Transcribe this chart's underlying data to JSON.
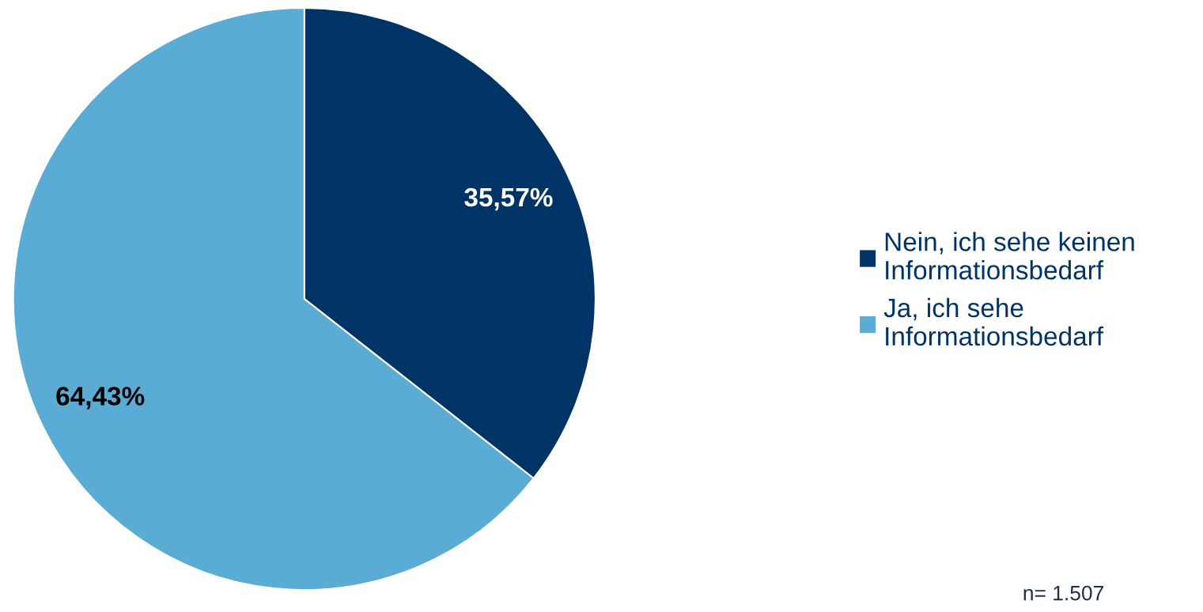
{
  "chart_data": {
    "type": "pie",
    "categories": [
      "Nein, ich sehe keinen Informationsbedarf",
      "Ja, ich sehe Informationsbedarf"
    ],
    "values": [
      35.57,
      64.43
    ],
    "colors": [
      "#003366",
      "#5bacd4"
    ],
    "value_labels": [
      "35,57%",
      "64,43%"
    ],
    "legend": "right",
    "annotations": [
      "n= 1.507"
    ]
  }
}
